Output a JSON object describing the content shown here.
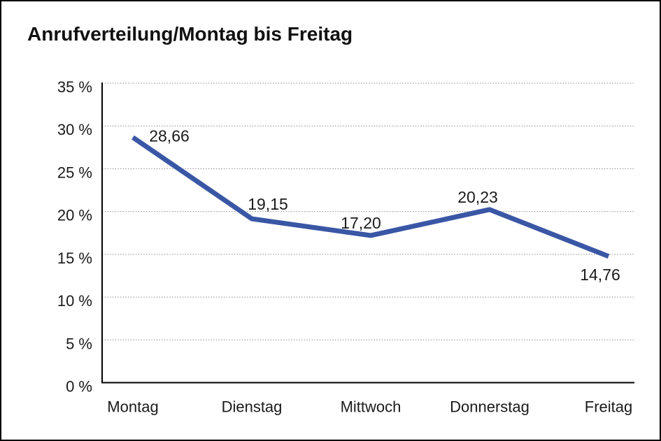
{
  "window": {
    "title": "Anrufverteilung/Montag bis Freitag"
  },
  "colors": {
    "line": "#3A57A5",
    "grid": "#8C8C8C",
    "axis": "#000000",
    "text": "#1A1A1A",
    "background": "#FFFFFF",
    "frame_border": "#000000"
  },
  "chart_data": {
    "type": "line",
    "title": "Anrufverteilung/Montag bis Freitag",
    "categories": [
      "Montag",
      "Dienstag",
      "Mittwoch",
      "Donnerstag",
      "Freitag"
    ],
    "values": [
      28.66,
      19.15,
      17.2,
      20.23,
      14.76
    ],
    "value_labels": [
      "28,66",
      "19,15",
      "17,20",
      "20,23",
      "14,76"
    ],
    "xlabel": "",
    "ylabel": "",
    "ylim": [
      0,
      35
    ],
    "ytick_step": 5,
    "ytick_labels": [
      "0 %",
      "5 %",
      "10 %",
      "15 %",
      "20 %",
      "25 %",
      "30 %",
      "35 %"
    ],
    "grid": "horizontal-dotted",
    "legend": "none",
    "marker": "none",
    "line_style": "solid"
  }
}
